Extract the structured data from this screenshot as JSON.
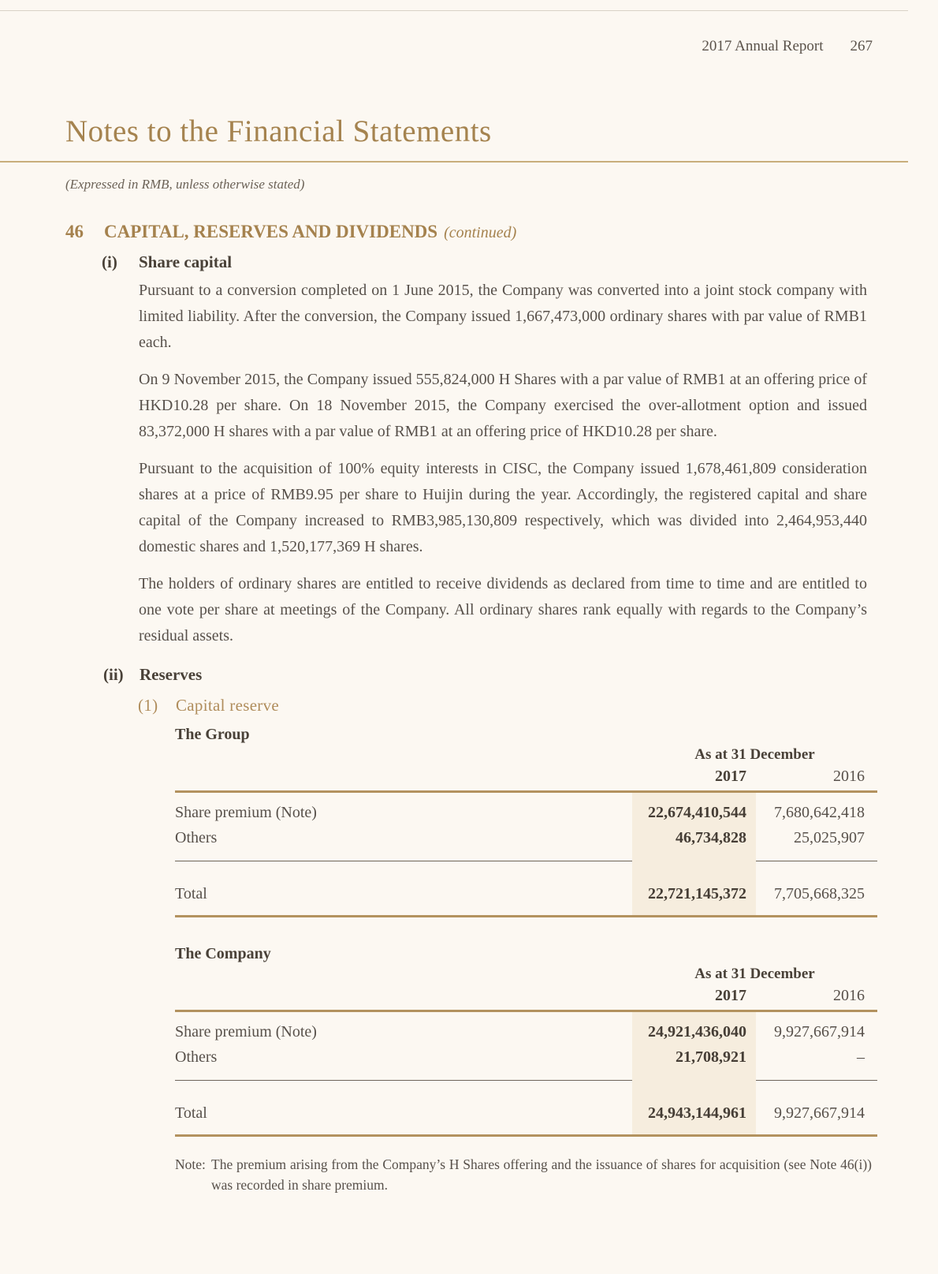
{
  "header": {
    "report_name": "2017 Annual Report",
    "page_number": "267"
  },
  "title": "Notes to the Financial Statements",
  "subtitle": "(Expressed in RMB, unless otherwise stated)",
  "section": {
    "number": "46",
    "title": "CAPITAL, RESERVES AND DIVIDENDS",
    "continued": "(continued)"
  },
  "share_capital": {
    "label": "(i)",
    "title": "Share capital",
    "paragraphs": [
      "Pursuant to a conversion completed on 1 June 2015, the Company was converted into a joint stock company with limited liability. After the conversion, the Company issued 1,667,473,000 ordinary shares with par value of RMB1 each.",
      "On 9 November 2015, the Company issued 555,824,000 H Shares with a par value of RMB1 at an offering price of HKD10.28 per share. On 18 November 2015, the Company exercised the over-allotment option and issued 83,372,000 H shares with a par value of RMB1 at an offering price of HKD10.28 per share.",
      "Pursuant to the acquisition of 100% equity interests in CISC, the Company issued 1,678,461,809 consideration shares at a price of RMB9.95 per share to Huijin during the year. Accordingly, the registered capital and share capital of the Company increased to RMB3,985,130,809 respectively, which was divided into 2,464,953,440 domestic shares and 1,520,177,369 H shares.",
      "The holders of ordinary shares are entitled to receive dividends as declared from time to time and are entitled to one vote per share at meetings of the Company. All ordinary shares rank equally with regards to the Company’s residual assets."
    ]
  },
  "reserves": {
    "label": "(ii)",
    "title": "Reserves",
    "capital_reserve": {
      "label": "(1)",
      "title": "Capital reserve"
    }
  },
  "tables": [
    {
      "entity": "The Group",
      "period_header": "As at 31 December",
      "years": [
        "2017",
        "2016"
      ],
      "rows": [
        {
          "label": "Share premium (Note)",
          "y2017": "22,674,410,544",
          "y2016": "7,680,642,418"
        },
        {
          "label": "Others",
          "y2017": "46,734,828",
          "y2016": "25,025,907"
        }
      ],
      "total": {
        "label": "Total",
        "y2017": "22,721,145,372",
        "y2016": "7,705,668,325"
      }
    },
    {
      "entity": "The Company",
      "period_header": "As at 31 December",
      "years": [
        "2017",
        "2016"
      ],
      "rows": [
        {
          "label": "Share premium (Note)",
          "y2017": "24,921,436,040",
          "y2016": "9,927,667,914"
        },
        {
          "label": "Others",
          "y2017": "21,708,921",
          "y2016": "–"
        }
      ],
      "total": {
        "label": "Total",
        "y2017": "24,943,144,961",
        "y2016": "9,927,667,914"
      }
    }
  ],
  "note": {
    "label": "Note:",
    "text": "The premium arising from the Company’s H Shares offering and the issuance of shares for acquisition (see Note 46(i)) was recorded in share premium."
  },
  "colors": {
    "background": "#FCF8F2",
    "accent_gold": "#A5834F",
    "rule_gold": "#B3925F",
    "highlight_column": "#F6EDDE",
    "body_text": "#57504A"
  }
}
